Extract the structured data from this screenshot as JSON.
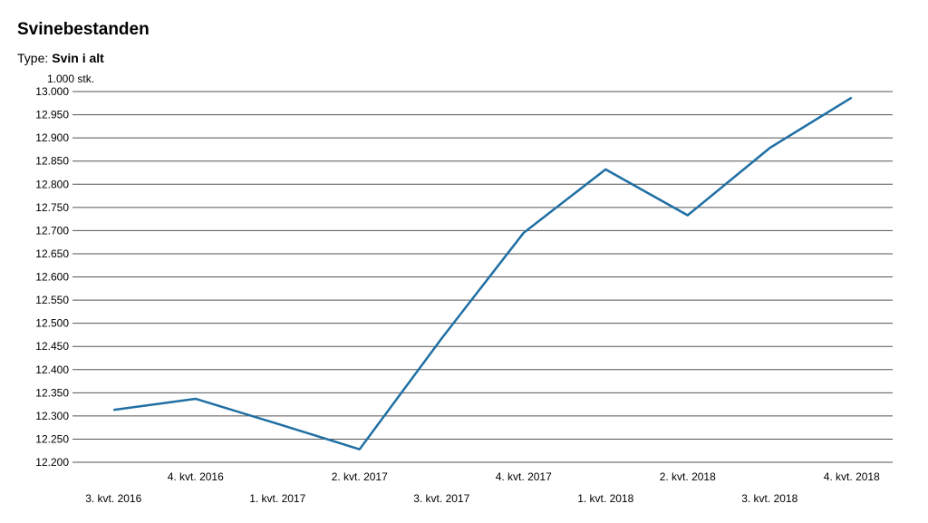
{
  "header": {
    "title": "Svinebestanden",
    "filter_label": "Type:",
    "filter_value": "Svin i alt"
  },
  "chart_data": {
    "type": "line",
    "title": "Svinebestanden",
    "ylabel": "1.000 stk.",
    "ylim": [
      12200,
      13000
    ],
    "yticks": [
      12200,
      12250,
      12300,
      12350,
      12400,
      12450,
      12500,
      12550,
      12600,
      12650,
      12700,
      12750,
      12800,
      12850,
      12900,
      12950,
      13000
    ],
    "ytick_labels": [
      "12.200",
      "12.250",
      "12.300",
      "12.350",
      "12.400",
      "12.450",
      "12.500",
      "12.550",
      "12.600",
      "12.650",
      "12.700",
      "12.750",
      "12.800",
      "12.850",
      "12.900",
      "12.950",
      "13.000"
    ],
    "categories": [
      "3. kvt. 2016",
      "4. kvt. 2016",
      "1. kvt. 2017",
      "2. kvt. 2017",
      "3. kvt. 2017",
      "4. kvt. 2017",
      "1. kvt. 2018",
      "2. kvt. 2018",
      "3. kvt. 2018",
      "4. kvt. 2018"
    ],
    "values": [
      12313,
      12337,
      12283,
      12228,
      12467,
      12695,
      12832,
      12733,
      12878,
      12987
    ],
    "color": "#1f6fa3",
    "grid": true,
    "legend": "none"
  }
}
